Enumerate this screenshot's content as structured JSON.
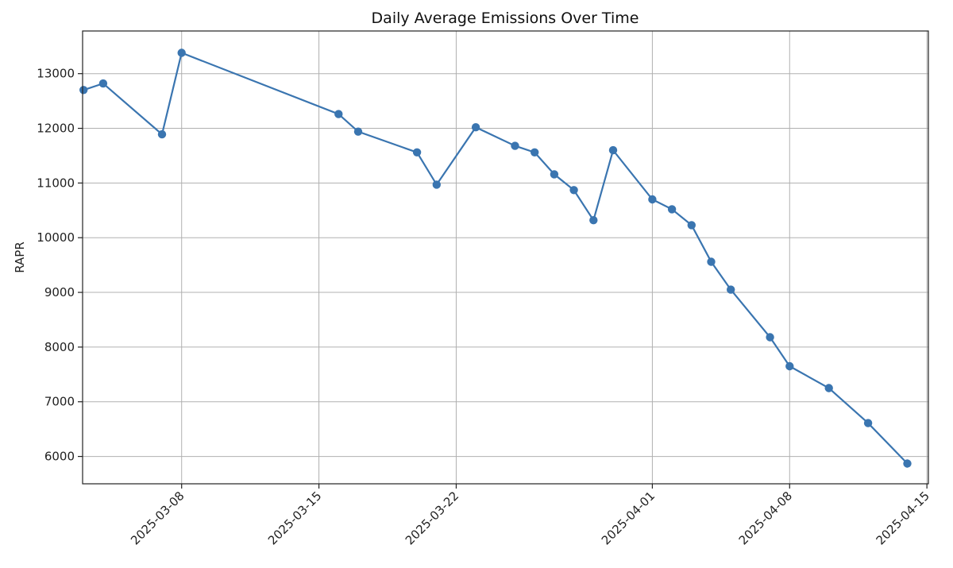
{
  "chart_data": {
    "type": "line",
    "title": "Daily Average Emissions Over Time",
    "xlabel": "",
    "ylabel": "RAPR",
    "grid": true,
    "color": "#3a75b0",
    "x_ticks": [
      "2025-03-08",
      "2025-03-15",
      "2025-03-22",
      "2025-04-01",
      "2025-04-08",
      "2025-04-15"
    ],
    "y_ticks": [
      6000,
      7000,
      8000,
      9000,
      10000,
      11000,
      12000,
      13000
    ],
    "xlim": [
      "2025-03-03",
      "2025-04-15"
    ],
    "ylim": [
      5500,
      13780
    ],
    "series": [
      {
        "x": [
          "2025-03-03",
          "2025-03-04",
          "2025-03-07",
          "2025-03-08",
          "2025-03-16",
          "2025-03-17",
          "2025-03-20",
          "2025-03-21",
          "2025-03-23",
          "2025-03-25",
          "2025-03-26",
          "2025-03-27",
          "2025-03-28",
          "2025-03-29",
          "2025-03-30",
          "2025-04-01",
          "2025-04-02",
          "2025-04-03",
          "2025-04-04",
          "2025-04-05",
          "2025-04-07",
          "2025-04-08",
          "2025-04-10",
          "2025-04-12",
          "2025-04-14"
        ],
        "y": [
          12700,
          12820,
          11890,
          13380,
          12260,
          11940,
          11560,
          10970,
          12020,
          11680,
          11560,
          11160,
          10870,
          10320,
          11600,
          10700,
          10520,
          10230,
          9560,
          9050,
          8180,
          7650,
          7250,
          6610,
          5870
        ]
      }
    ]
  }
}
